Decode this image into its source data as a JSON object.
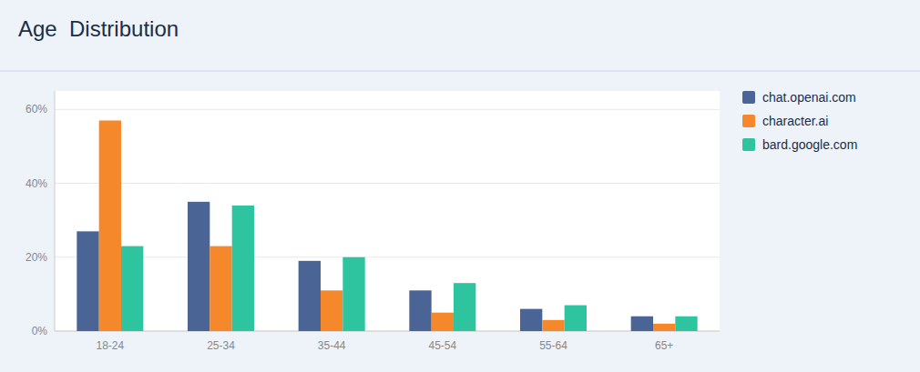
{
  "chart_data": {
    "type": "bar",
    "title": "Age  Distribution",
    "categories": [
      "18-24",
      "25-34",
      "35-44",
      "45-54",
      "55-64",
      "65+"
    ],
    "series": [
      {
        "name": "chat.openai.com",
        "color": "#4a6496",
        "values": [
          27,
          35,
          19,
          11,
          6,
          4
        ]
      },
      {
        "name": "character.ai",
        "color": "#f5882a",
        "values": [
          57,
          23,
          11,
          5,
          3,
          2
        ]
      },
      {
        "name": "bard.google.com",
        "color": "#2ec4a0",
        "values": [
          23,
          34,
          20,
          13,
          7,
          4
        ]
      }
    ],
    "ylim": [
      0,
      65
    ],
    "yticks": [
      {
        "value": 0,
        "label": "0%"
      },
      {
        "value": 20,
        "label": "20%"
      },
      {
        "value": 40,
        "label": "40%"
      },
      {
        "value": 60,
        "label": "60%"
      }
    ],
    "grid": true,
    "legend": "right"
  }
}
